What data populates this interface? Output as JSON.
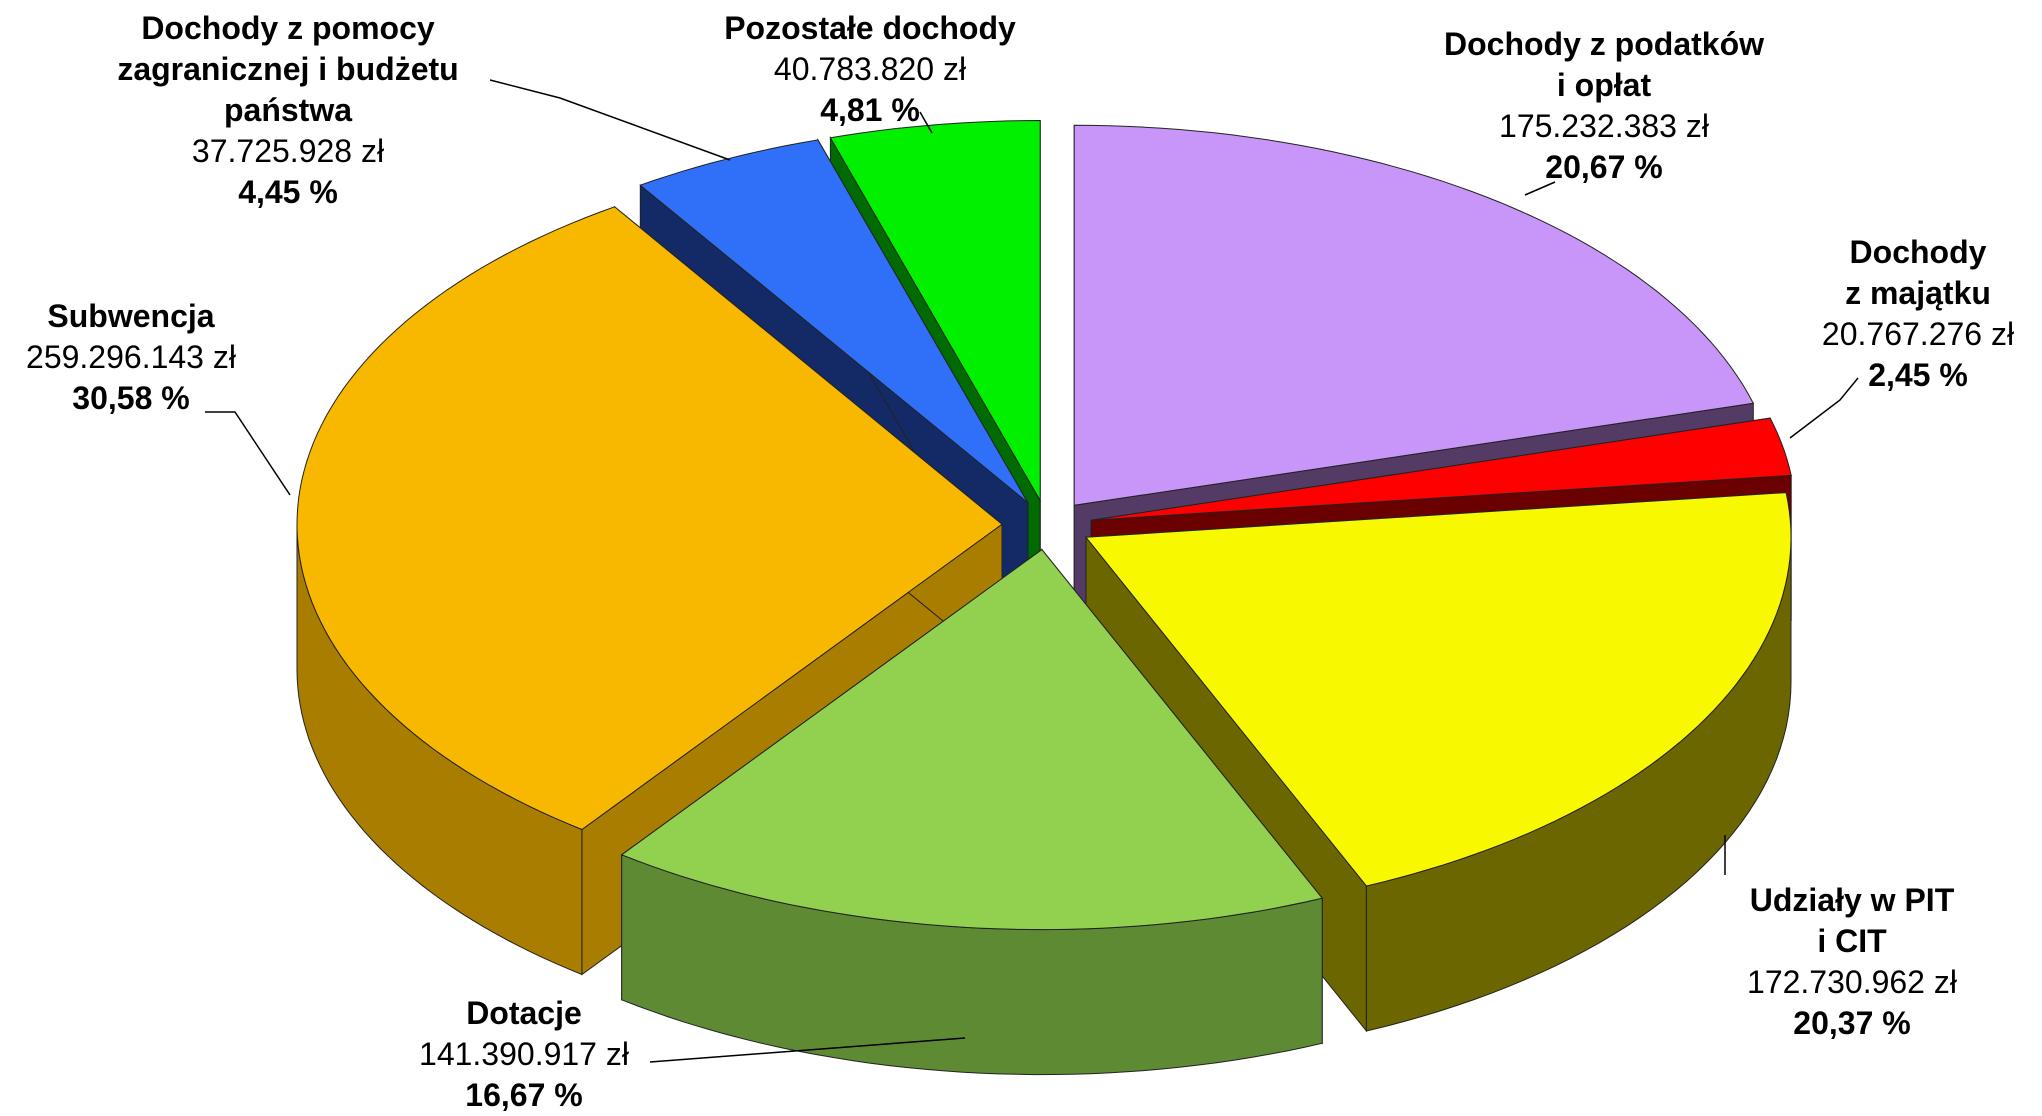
{
  "chart_data": {
    "type": "pie3d",
    "categories": [
      "Dochody z podatków\ni opłat",
      "Dochody\nz majątku",
      "Udziały w PIT i CIT",
      "Dotacje",
      "Subwencja",
      "Dochody z pomocy\nzagranicznej i budżetu\npaństwa",
      "Pozostałe dochody"
    ],
    "values": [
      20.67,
      2.45,
      20.37,
      16.67,
      30.58,
      4.45,
      4.81
    ],
    "value_labels": [
      "20,67 %",
      "2,45 %",
      "20,37 %",
      "16,67 %",
      "30,58 %",
      "4,45 %",
      "4,81 %"
    ],
    "amounts": [
      175232383,
      20767276,
      172730962,
      141390917,
      259296143,
      37725928,
      40783820
    ],
    "amount_labels": [
      "175.232.383 zł",
      "20.767.276 zł",
      "172.730.962 zł",
      "141.390.917 zł",
      "259.296.143 zł",
      "37.725.928 zł",
      "40.783.820 zł"
    ],
    "colors": [
      "#c896f8",
      "#ff0000",
      "#f8f800",
      "#92d050",
      "#f8b800",
      "#3070f8",
      "#00f000"
    ],
    "side_colors": [
      "#533b66",
      "#6b0000",
      "#6b6600",
      "#5e8a34",
      "#a87d00",
      "#132a66",
      "#006b00"
    ]
  }
}
